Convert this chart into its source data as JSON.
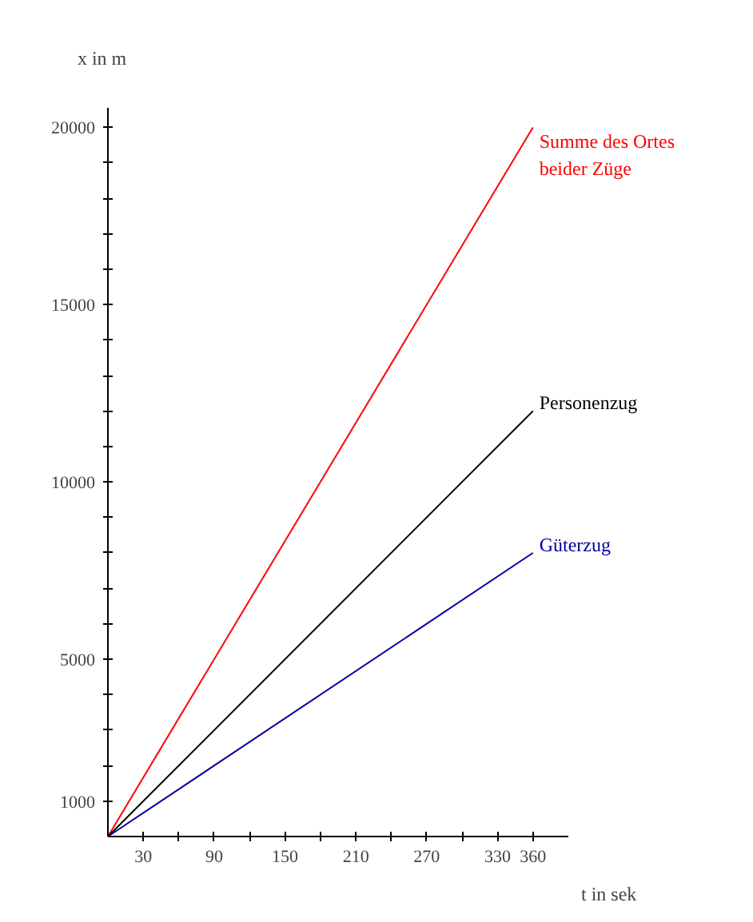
{
  "chart_data": {
    "type": "line",
    "xlabel": "t in sek",
    "ylabel": "x in m",
    "x": [
      0,
      360
    ],
    "series": [
      {
        "name": "Summe des Ortes\nbeider Züge",
        "color": "#ff0000",
        "values": [
          0,
          20000
        ]
      },
      {
        "name": "Personenzug",
        "color": "#000000",
        "values": [
          0,
          12000
        ]
      },
      {
        "name": "Güterzug",
        "color": "#0000a0",
        "values": [
          0,
          8000
        ]
      }
    ],
    "xlim": [
      0,
      390
    ],
    "ylim": [
      0,
      20550
    ],
    "xticks": [
      30,
      {
        "value": 60,
        "label": null
      },
      90,
      {
        "value": 120,
        "label": null
      },
      150,
      {
        "value": 180,
        "label": null
      },
      210,
      {
        "value": 240,
        "label": null
      },
      270,
      {
        "value": 300,
        "label": null
      },
      330,
      360
    ],
    "yticks": [
      1000,
      {
        "value": 2000,
        "label": null
      },
      {
        "value": 3000,
        "label": null
      },
      {
        "value": 4000,
        "label": null
      },
      5000,
      {
        "value": 6000,
        "label": null
      },
      {
        "value": 7000,
        "label": null
      },
      {
        "value": 8000,
        "label": null
      },
      {
        "value": 9000,
        "label": null
      },
      10000,
      {
        "value": 11000,
        "label": null
      },
      {
        "value": 12000,
        "label": null
      },
      {
        "value": 13000,
        "label": null
      },
      {
        "value": 14000,
        "label": null
      },
      15000,
      {
        "value": 16000,
        "label": null
      },
      {
        "value": 17000,
        "label": null
      },
      {
        "value": 18000,
        "label": null
      },
      {
        "value": 19000,
        "label": null
      },
      20000
    ],
    "grid": false,
    "marker": "none",
    "line_style": "solid",
    "legend": false
  }
}
